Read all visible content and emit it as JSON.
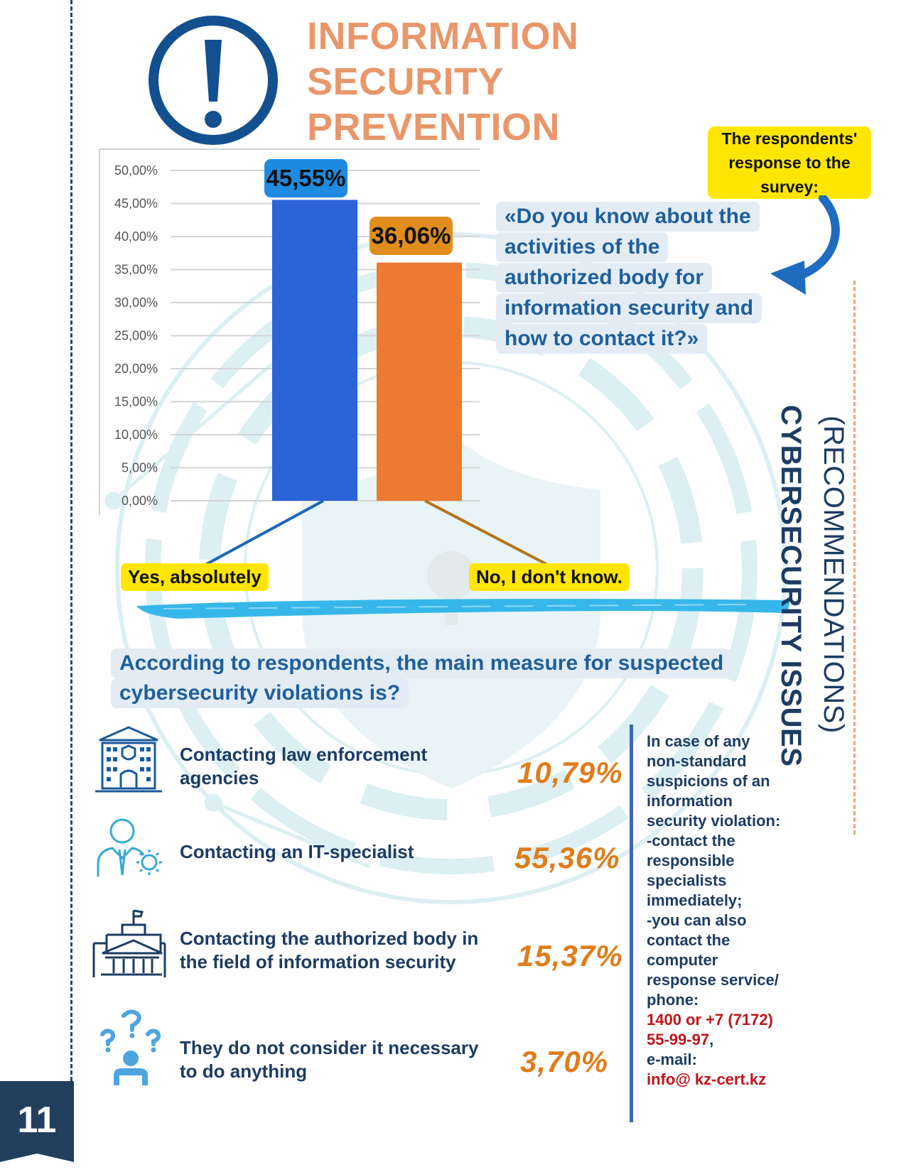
{
  "page_number": "11",
  "title": [
    "INFORMATION",
    "SECURITY",
    "PREVENTION"
  ],
  "respondents_label": [
    "The respondents'",
    "response to the",
    "survey:"
  ],
  "question": [
    "«Do you know about the",
    "activities of the",
    "authorized body for",
    "information security and",
    "how to contact it?»"
  ],
  "side_title": "CYBERSECURITY ISSUES",
  "side_subtitle": "(RECOMMENDATIONS)",
  "chart_data": {
    "type": "bar",
    "categories": [
      "Yes, absolutely",
      "No, I don't know."
    ],
    "values": [
      45.55,
      36.06
    ],
    "value_labels": [
      "45,55%",
      "36,06%"
    ],
    "y_ticks": [
      "0,00%",
      "5,00%",
      "10,00%",
      "15,00%",
      "20,00%",
      "25,00%",
      "30,00%",
      "35,00%",
      "40,00%",
      "45,00%",
      "50,00%"
    ],
    "ylim": [
      0,
      50
    ],
    "grid": true,
    "colors": [
      "#2b63d9",
      "#ec7a30"
    ]
  },
  "section_question": [
    "According to respondents, the main measure for suspected",
    "cybersecurity violations is?"
  ],
  "measures": [
    {
      "icon": "police-building-icon",
      "label": [
        "Contacting law enforcement",
        "agencies"
      ],
      "value": "10,79%"
    },
    {
      "icon": "it-specialist-icon",
      "label": [
        "Contacting an IT-specialist"
      ],
      "value": "55,36%"
    },
    {
      "icon": "government-building-icon",
      "label": [
        "Contacting the authorized body in",
        "the field of information security"
      ],
      "value": "15,37%"
    },
    {
      "icon": "confused-person-icon",
      "label": [
        "They do not consider it necessary",
        "to do anything"
      ],
      "value": "3,70%"
    }
  ],
  "note": {
    "lines": [
      "In case of any",
      "non-standard",
      "suspicions of an",
      "information",
      "security violation:",
      "-contact the",
      "responsible",
      "specialists",
      "immediately;",
      "-you can also",
      "contact the",
      "computer",
      "response service/",
      "phone:"
    ],
    "phone_lines": [
      "1400 or +7 (7172)",
      "55-99-97"
    ],
    "comma": ",",
    "email_label": "e-mail:",
    "email": "info@ kz-cert.kz"
  },
  "colors": {
    "title": "#e9976a",
    "navy": "#1d3c63",
    "accent_blue": "#1f5f9b",
    "highlight_yellow": "#ffe600",
    "value_orange": "#de7d1a",
    "red": "#c0141a"
  }
}
